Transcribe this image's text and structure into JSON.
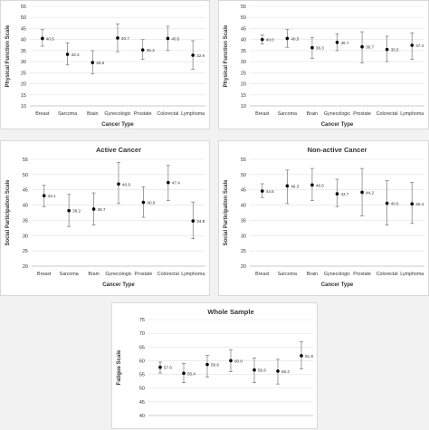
{
  "chart_data": [
    {
      "type": "scatter",
      "title": "",
      "xlabel": "Cancer Type",
      "ylabel": "Physical Function Scale",
      "ylim": [
        10,
        55
      ],
      "yticks": [
        10,
        15,
        20,
        25,
        30,
        35,
        40,
        45,
        50,
        55
      ],
      "categories": [
        "Breast",
        "Sarcoma",
        "Brain",
        "Gynecologic",
        "Prostate",
        "Colorectal",
        "Lymphoma"
      ],
      "values": [
        40.5,
        33.3,
        29.6,
        40.7,
        35.3,
        40.5,
        32.9
      ],
      "lower": [
        37,
        28.5,
        24.5,
        34.5,
        31,
        35,
        26.5
      ],
      "upper": [
        44.5,
        38.5,
        35,
        47,
        40,
        46,
        39.5
      ],
      "grid": true
    },
    {
      "type": "scatter",
      "title": "",
      "xlabel": "Cancer Type",
      "ylabel": "Physical Function Scale",
      "ylim": [
        10,
        55
      ],
      "yticks": [
        10,
        15,
        20,
        25,
        30,
        35,
        40,
        45,
        50,
        55
      ],
      "categories": [
        "Breast",
        "Sarcoma",
        "Brain",
        "Gynecologic",
        "Prostate",
        "Colorectal",
        "Lymphoma"
      ],
      "values": [
        40.0,
        40.5,
        36.3,
        38.7,
        36.7,
        35.5,
        37.4
      ],
      "lower": [
        38,
        36.5,
        31.5,
        35,
        29.5,
        30,
        31
      ],
      "upper": [
        42,
        44.5,
        41,
        42.5,
        43.5,
        41.5,
        43
      ],
      "grid": true
    },
    {
      "type": "scatter",
      "title": "Active Cancer",
      "xlabel": "Cancer Type",
      "ylabel": "Social Participation Scale",
      "ylim": [
        20,
        55
      ],
      "yticks": [
        20,
        25,
        30,
        35,
        40,
        45,
        50,
        55
      ],
      "categories": [
        "Breast",
        "Sarcoma",
        "Brain",
        "Gynecologic",
        "Prostate",
        "Colorectal",
        "Lymphoma"
      ],
      "values": [
        43.1,
        38.2,
        38.7,
        46.9,
        40.9,
        47.4,
        34.8
      ],
      "lower": [
        39.5,
        33,
        33.5,
        40.5,
        36,
        41.5,
        29
      ],
      "upper": [
        46.5,
        43.5,
        44,
        54,
        46,
        53,
        41
      ],
      "grid": true
    },
    {
      "type": "scatter",
      "title": "Non-active Cancer",
      "xlabel": "Cancer Type",
      "ylabel": "Social Participation Scale",
      "ylim": [
        20,
        55
      ],
      "yticks": [
        20,
        25,
        30,
        35,
        40,
        45,
        50,
        55
      ],
      "categories": [
        "Breast",
        "Sarcoma",
        "Brain",
        "Gynecologic",
        "Prostate",
        "Colorectal",
        "Lymphoma"
      ],
      "values": [
        44.6,
        46.3,
        46.6,
        43.7,
        44.2,
        40.6,
        40.4
      ],
      "lower": [
        42.5,
        40.5,
        41.5,
        39.5,
        36.5,
        33.5,
        34
      ],
      "upper": [
        47,
        51.5,
        52,
        48.5,
        52,
        48,
        47.5
      ],
      "grid": true
    },
    {
      "type": "scatter",
      "title": "Whole Sample",
      "xlabel": "",
      "ylabel": "Fatigue Scale",
      "ylim": [
        40,
        75
      ],
      "yticks": [
        40,
        45,
        50,
        55,
        60,
        65,
        70,
        75
      ],
      "categories": [
        "",
        "",
        "",
        "",
        "",
        "",
        ""
      ],
      "values": [
        57.6,
        55.4,
        58.6,
        60.0,
        56.6,
        56.2,
        61.8
      ],
      "lower": [
        55.5,
        52,
        54,
        56,
        52,
        51.5,
        57
      ],
      "upper": [
        59.5,
        59,
        62,
        64,
        61,
        60.5,
        67
      ],
      "grid": true
    }
  ]
}
